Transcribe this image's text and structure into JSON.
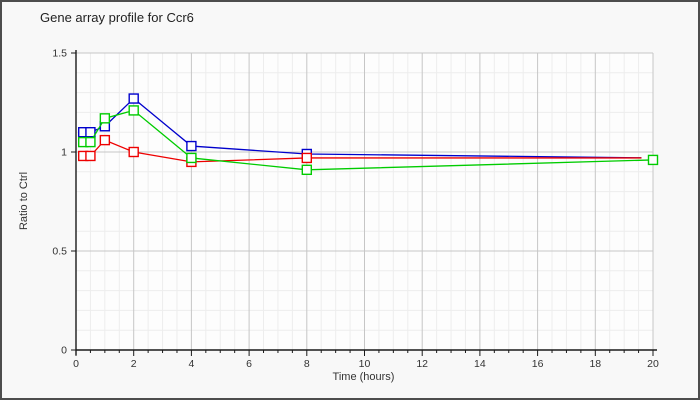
{
  "window": {
    "title": "Gene array profile for Ccr6"
  },
  "chart_data": {
    "type": "line",
    "title": "Gene array profile for Ccr6",
    "xlabel": "Time (hours)",
    "ylabel": "Ratio to Ctrl",
    "xlim": [
      0,
      20
    ],
    "ylim": [
      0,
      1.5
    ],
    "grid": true,
    "legend": "none",
    "x_major_ticks": [
      0,
      2,
      4,
      6,
      8,
      10,
      12,
      14,
      16,
      18,
      20
    ],
    "x_minor_step": 0.5,
    "y_major_ticks": [
      "0",
      "0.5",
      "1",
      "1.5"
    ],
    "y_major_values": [
      0,
      0.5,
      1,
      1.5
    ],
    "y_minor_step": 0.1,
    "x": [
      0.25,
      0.5,
      1,
      2,
      4,
      8,
      20
    ],
    "marker": "open-square",
    "series": [
      {
        "name": "series-blue",
        "color": "#0000cc",
        "values": [
          1.1,
          1.1,
          1.13,
          1.27,
          1.03,
          0.99,
          0.97
        ],
        "line_end_x": 19.6,
        "end_marker": false
      },
      {
        "name": "series-red",
        "color": "#ee0000",
        "values": [
          0.98,
          0.98,
          1.06,
          1.0,
          0.95,
          0.97,
          0.97
        ],
        "line_end_x": 19.6,
        "end_marker": false
      },
      {
        "name": "series-green",
        "color": "#00cc00",
        "values": [
          1.05,
          1.05,
          1.17,
          1.21,
          0.97,
          0.91,
          0.96
        ],
        "line_end_x": 20,
        "end_marker": true
      }
    ]
  }
}
